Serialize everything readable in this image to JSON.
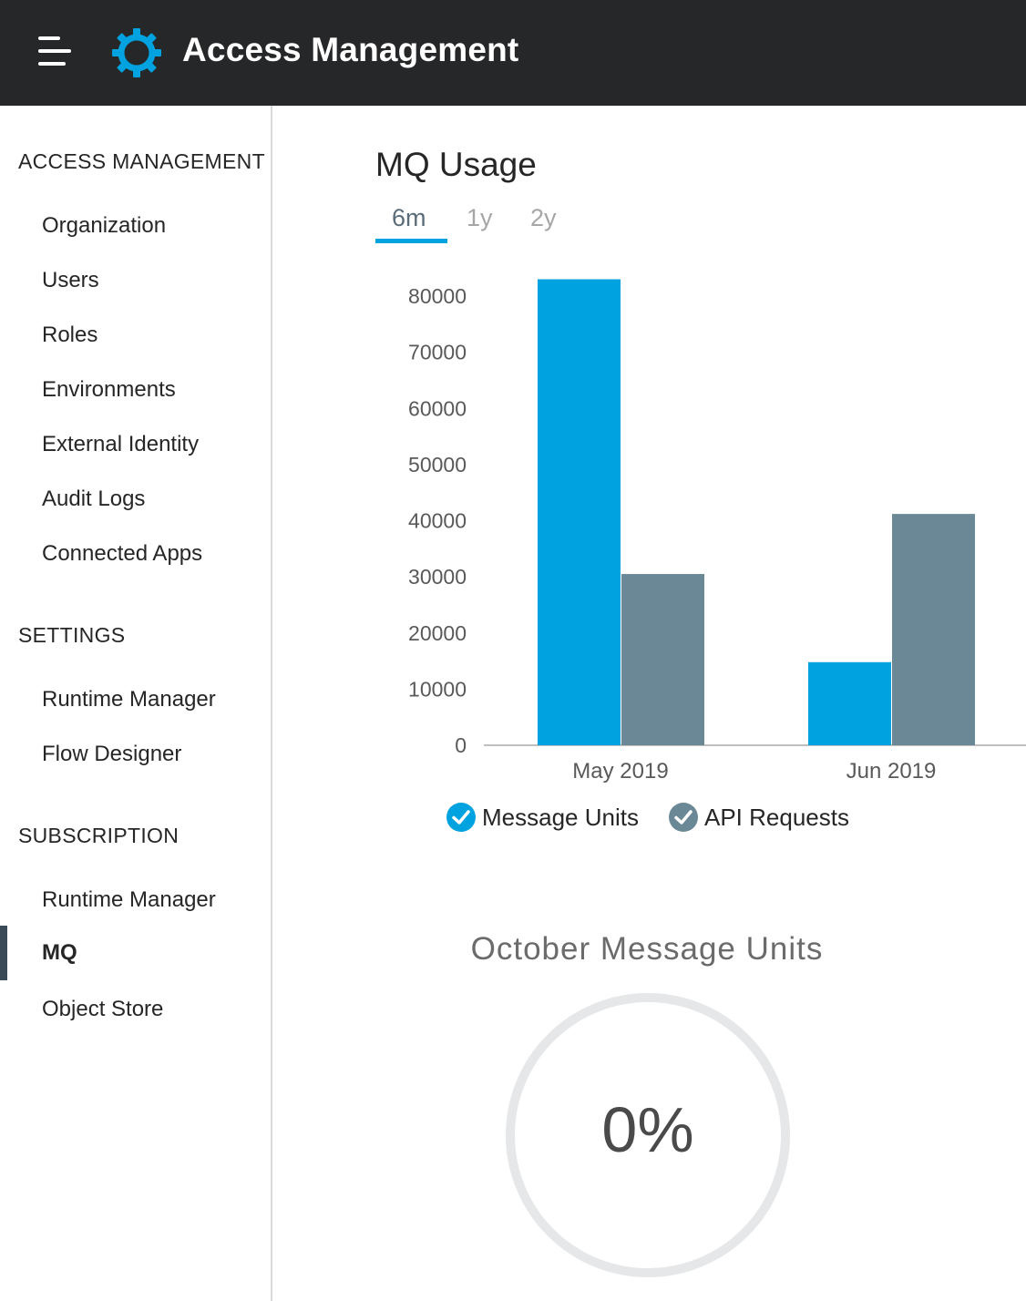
{
  "header": {
    "title": "Access Management",
    "menu_icon": "hamburger-menu-icon",
    "logo_icon": "gear-logo-icon"
  },
  "sidebar": {
    "sections": [
      {
        "title": "ACCESS MANAGEMENT",
        "items": [
          "Organization",
          "Users",
          "Roles",
          "Environments",
          "External Identity",
          "Audit Logs",
          "Connected Apps"
        ]
      },
      {
        "title": "SETTINGS",
        "items": [
          "Runtime Manager",
          "Flow Designer"
        ]
      },
      {
        "title": "SUBSCRIPTION",
        "items": [
          "Runtime Manager",
          "MQ",
          "Object Store"
        ]
      }
    ],
    "active_item": "MQ"
  },
  "main": {
    "title": "MQ Usage",
    "tabs": [
      "6m",
      "1y",
      "2y"
    ],
    "selected_tab": "6m",
    "legend": [
      {
        "label": "Message Units",
        "color": "#00a2df",
        "checked": true
      },
      {
        "label": "API Requests",
        "color": "#6b8896",
        "checked": true
      }
    ],
    "gauge": {
      "title": "October Message Units",
      "value_label": "0%",
      "value": 0
    }
  },
  "colors": {
    "topbar": "#262728",
    "accent": "#00a2df",
    "secondary": "#6b8896"
  },
  "chart_data": {
    "type": "bar",
    "categories": [
      "May 2019",
      "Jun 2019"
    ],
    "series": [
      {
        "name": "Message Units",
        "values": [
          83000,
          14800
        ],
        "color": "#00a2df"
      },
      {
        "name": "API Requests",
        "values": [
          30500,
          41200
        ],
        "color": "#6b8896"
      }
    ],
    "yticks": [
      "80000",
      "70000",
      "60000",
      "50000",
      "40000",
      "30000",
      "20000",
      "10000",
      "0"
    ],
    "ylim": [
      0,
      80000
    ],
    "grid": false,
    "legend_position": "bottom"
  }
}
